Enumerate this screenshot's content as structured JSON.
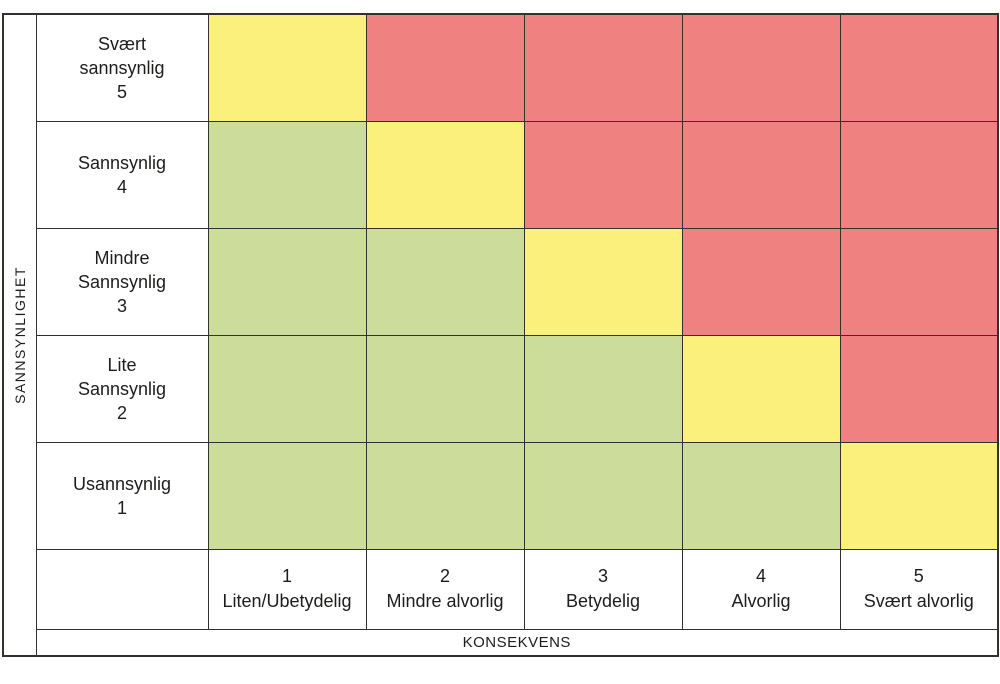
{
  "colors": {
    "green": "#cbdc9b",
    "yellow": "#fbf07c",
    "red": "#ef8181",
    "border": "#32312c",
    "text": "#1d1d1b",
    "background": "#ffffff"
  },
  "chart_data": {
    "type": "heatmap",
    "y_axis": {
      "label": "SANNSYNLIGHET",
      "categories_top_to_bottom": [
        {
          "label": "Svært\nsannsynlig",
          "value": "5"
        },
        {
          "label": "Sannsynlig",
          "value": "4"
        },
        {
          "label": "Mindre\nSannsynlig",
          "value": "3"
        },
        {
          "label": "Lite\nSannsynlig",
          "value": "2"
        },
        {
          "label": "Usannsynlig",
          "value": "1"
        }
      ]
    },
    "x_axis": {
      "label": "KONSEKVENS",
      "categories": [
        {
          "value": "1",
          "label": "Liten/Ubetydelig"
        },
        {
          "value": "2",
          "label": "Mindre alvorlig"
        },
        {
          "value": "3",
          "label": "Betydelig"
        },
        {
          "value": "4",
          "label": "Alvorlig"
        },
        {
          "value": "5",
          "label": "Svært alvorlig"
        }
      ]
    },
    "matrix_rows_top_to_bottom": [
      [
        "yellow",
        "red",
        "red",
        "red",
        "red"
      ],
      [
        "green",
        "yellow",
        "red",
        "red",
        "red"
      ],
      [
        "green",
        "green",
        "yellow",
        "red",
        "red"
      ],
      [
        "green",
        "green",
        "green",
        "yellow",
        "red"
      ],
      [
        "green",
        "green",
        "green",
        "green",
        "yellow"
      ]
    ],
    "layout": {
      "grid": "on",
      "y_axis_title_position": "left-rotated",
      "x_axis_title_position": "bottom-center"
    }
  }
}
